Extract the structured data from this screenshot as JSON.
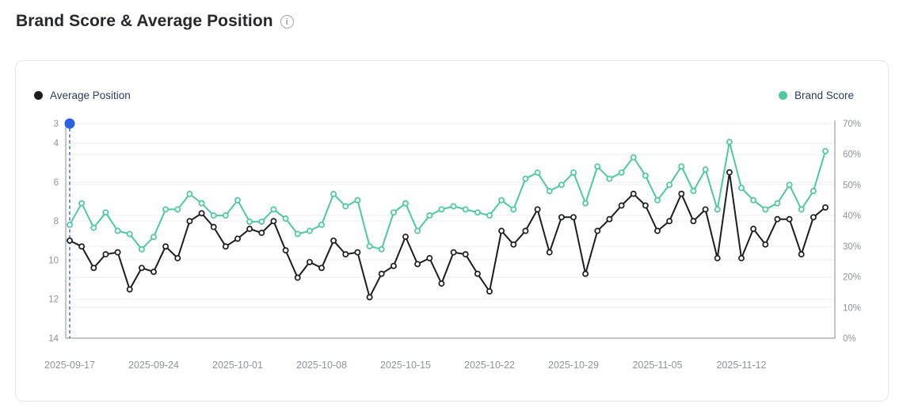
{
  "header": {
    "title": "Brand Score & Average Position",
    "info_icon_glyph": "i"
  },
  "legend": {
    "left": {
      "label": "Average Position",
      "color": "#1b1d22"
    },
    "right": {
      "label": "Brand Score",
      "color": "#4cc8a2"
    }
  },
  "colors": {
    "grid": "#e9eef5",
    "axis": "#888d96",
    "tick_text": "#8d939c",
    "annotation_blue": "#2d5fe8",
    "marker_fill": "#ffffff"
  },
  "chart_data": {
    "type": "line",
    "title": "Brand Score & Average Position",
    "x": [
      "2025-09-17",
      "2025-09-18",
      "2025-09-19",
      "2025-09-20",
      "2025-09-21",
      "2025-09-22",
      "2025-09-23",
      "2025-09-24",
      "2025-09-25",
      "2025-09-26",
      "2025-09-27",
      "2025-09-28",
      "2025-09-29",
      "2025-09-30",
      "2025-10-01",
      "2025-10-02",
      "2025-10-03",
      "2025-10-04",
      "2025-10-05",
      "2025-10-06",
      "2025-10-07",
      "2025-10-08",
      "2025-10-09",
      "2025-10-10",
      "2025-10-11",
      "2025-10-12",
      "2025-10-13",
      "2025-10-14",
      "2025-10-15",
      "2025-10-16",
      "2025-10-17",
      "2025-10-18",
      "2025-10-19",
      "2025-10-20",
      "2025-10-21",
      "2025-10-22",
      "2025-10-23",
      "2025-10-24",
      "2025-10-25",
      "2025-10-26",
      "2025-10-27",
      "2025-10-28",
      "2025-10-29",
      "2025-10-30",
      "2025-10-31",
      "2025-11-01",
      "2025-11-02",
      "2025-11-03",
      "2025-11-04",
      "2025-11-05",
      "2025-11-06",
      "2025-11-07",
      "2025-11-08",
      "2025-11-09",
      "2025-11-10",
      "2025-11-11",
      "2025-11-12",
      "2025-11-13",
      "2025-11-14",
      "2025-11-15",
      "2025-11-16",
      "2025-11-17",
      "2025-11-18",
      "2025-11-19"
    ],
    "x_axis_labels": [
      "2025-09-17",
      "2025-09-24",
      "2025-10-01",
      "2025-10-08",
      "2025-10-15",
      "2025-10-22",
      "2025-10-29",
      "2025-11-05",
      "2025-11-12"
    ],
    "x_label_indices": [
      0,
      7,
      14,
      21,
      28,
      35,
      42,
      49,
      56
    ],
    "series": [
      {
        "name": "Average Position",
        "axis": "left",
        "color": "#1b1d22",
        "values": [
          9.0,
          9.3,
          10.4,
          9.7,
          9.6,
          11.5,
          10.4,
          10.6,
          9.3,
          9.9,
          8.0,
          7.6,
          8.3,
          9.3,
          8.9,
          8.4,
          8.6,
          8.0,
          9.5,
          10.9,
          10.1,
          10.4,
          9.0,
          9.7,
          9.6,
          11.9,
          10.7,
          10.3,
          8.8,
          10.2,
          9.9,
          11.2,
          9.6,
          9.7,
          10.7,
          11.6,
          8.5,
          9.2,
          8.5,
          7.4,
          9.6,
          7.8,
          7.8,
          10.7,
          8.5,
          7.9,
          7.2,
          6.6,
          7.2,
          8.5,
          8.0,
          6.6,
          8.0,
          7.4,
          9.9,
          5.5,
          9.9,
          8.4,
          9.2,
          7.9,
          7.9,
          9.7,
          7.8,
          7.3
        ]
      },
      {
        "name": "Brand Score",
        "axis": "right",
        "color": "#4cc8a2",
        "values": [
          37,
          44,
          36,
          41,
          35,
          34,
          29,
          33,
          42,
          42,
          47,
          44,
          40,
          40,
          45,
          38,
          38,
          42,
          39,
          34,
          35,
          37,
          47,
          43,
          45,
          30,
          29,
          41,
          44,
          35,
          40,
          42,
          43,
          42,
          41,
          40,
          45,
          42,
          52,
          54,
          48,
          50,
          54,
          44,
          56,
          52,
          54,
          59,
          53,
          45,
          50,
          56,
          48,
          55,
          42,
          64,
          49,
          45,
          42,
          44,
          50,
          42,
          48,
          61
        ]
      }
    ],
    "left_axis": {
      "min": 3,
      "max": 14,
      "ticks": [
        3,
        4,
        6,
        8,
        10,
        12,
        14
      ],
      "inverted": true
    },
    "right_axis": {
      "min": 0,
      "max": 70,
      "ticks": [
        70,
        60,
        50,
        40,
        30,
        20,
        10,
        0
      ],
      "suffix": "%"
    },
    "annotation": {
      "type": "marker-with-dashed-line",
      "x_index": 0,
      "value_axis": "left",
      "value": 3,
      "color": "#2d5fe8"
    },
    "grid": true,
    "legend_position": "top"
  }
}
